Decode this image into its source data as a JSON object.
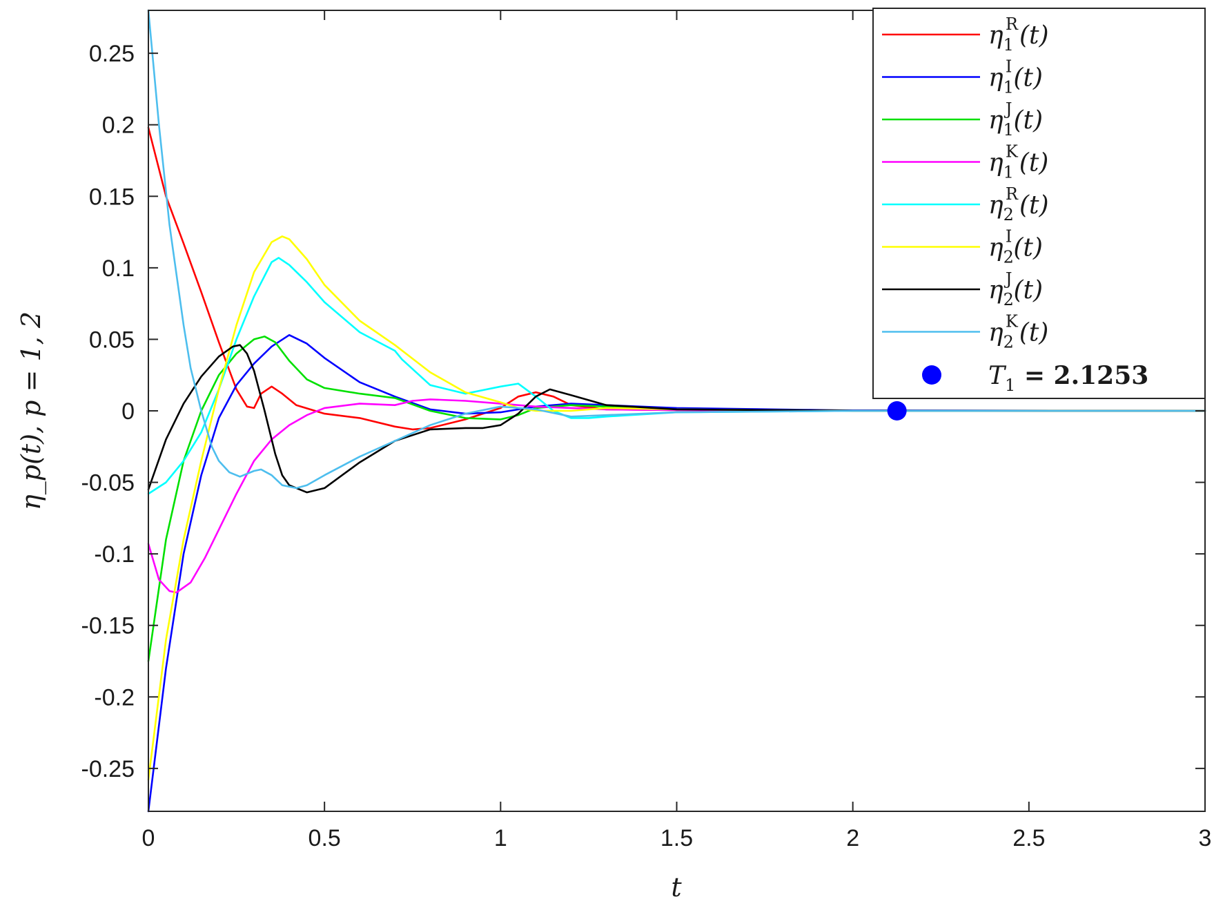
{
  "chart_data": {
    "type": "line",
    "xlabel": "t",
    "ylabel": "η_p(t),  p = 1, 2",
    "xlim": [
      0,
      3
    ],
    "ylim": [
      -0.28,
      0.28
    ],
    "xticks": [
      "0",
      "0.5",
      "1",
      "1.5",
      "2",
      "2.5",
      "3"
    ],
    "yticks": [
      "-0.25",
      "-0.2",
      "-0.15",
      "-0.1",
      "-0.05",
      "0",
      "0.05",
      "0.1",
      "0.15",
      "0.2",
      "0.25"
    ],
    "grid": false,
    "legend_position": "top-right",
    "series": [
      {
        "name": "η1^R(t)",
        "base": "η",
        "sub": "1",
        "sup": "R",
        "color": "#ff0000",
        "x": [
          0,
          0.05,
          0.1,
          0.15,
          0.2,
          0.25,
          0.28,
          0.3,
          0.32,
          0.35,
          0.38,
          0.42,
          0.5,
          0.6,
          0.7,
          0.75,
          0.8,
          0.9,
          1.0,
          1.05,
          1.1,
          1.15,
          1.2,
          1.3,
          1.5,
          2.0,
          3.0
        ],
        "y": [
          0.198,
          0.15,
          0.117,
          0.083,
          0.048,
          0.015,
          0.003,
          0.002,
          0.012,
          0.017,
          0.012,
          0.004,
          -0.002,
          -0.005,
          -0.011,
          -0.013,
          -0.012,
          -0.006,
          0.002,
          0.01,
          0.013,
          0.01,
          0.004,
          0.001,
          0.0005,
          0.0001,
          0
        ]
      },
      {
        "name": "η1^I(t)",
        "base": "η",
        "sub": "1",
        "sup": "I",
        "color": "#0000ff",
        "x": [
          0,
          0.05,
          0.1,
          0.15,
          0.2,
          0.25,
          0.3,
          0.35,
          0.4,
          0.45,
          0.5,
          0.6,
          0.7,
          0.8,
          0.9,
          1.0,
          1.1,
          1.2,
          1.3,
          1.5,
          2.0,
          3.0
        ],
        "y": [
          -0.28,
          -0.18,
          -0.1,
          -0.045,
          -0.005,
          0.018,
          0.033,
          0.045,
          0.053,
          0.047,
          0.037,
          0.02,
          0.01,
          0.001,
          -0.002,
          -0.001,
          0.003,
          0.005,
          0.004,
          0.002,
          0.0003,
          0
        ]
      },
      {
        "name": "η1^J(t)",
        "base": "η",
        "sub": "1",
        "sup": "J",
        "color": "#00e000",
        "x": [
          0,
          0.05,
          0.1,
          0.15,
          0.2,
          0.25,
          0.3,
          0.33,
          0.36,
          0.4,
          0.45,
          0.5,
          0.6,
          0.7,
          0.8,
          0.9,
          1.0,
          1.05,
          1.1,
          1.2,
          1.3,
          1.5,
          2.0,
          3.0
        ],
        "y": [
          -0.175,
          -0.09,
          -0.035,
          0.0,
          0.025,
          0.04,
          0.05,
          0.052,
          0.048,
          0.035,
          0.022,
          0.016,
          0.012,
          0.009,
          0.0,
          -0.005,
          -0.006,
          -0.003,
          0.002,
          0.004,
          0.003,
          0.001,
          0.0001,
          0
        ]
      },
      {
        "name": "η1^K(t)",
        "base": "η",
        "sub": "1",
        "sup": "K",
        "color": "#ff00ff",
        "x": [
          0,
          0.03,
          0.06,
          0.08,
          0.12,
          0.16,
          0.2,
          0.25,
          0.3,
          0.35,
          0.4,
          0.45,
          0.5,
          0.6,
          0.7,
          0.75,
          0.8,
          0.9,
          1.0,
          1.1,
          1.2,
          1.3,
          1.5,
          2.0,
          3.0
        ],
        "y": [
          -0.093,
          -0.118,
          -0.126,
          -0.127,
          -0.12,
          -0.103,
          -0.083,
          -0.058,
          -0.035,
          -0.02,
          -0.01,
          -0.003,
          0.002,
          0.005,
          0.004,
          0.007,
          0.008,
          0.007,
          0.005,
          0.003,
          0.002,
          0.001,
          0.0005,
          0.0001,
          0
        ]
      },
      {
        "name": "η2^R(t)",
        "base": "η",
        "sub": "2",
        "sup": "R",
        "color": "#00ffff",
        "x": [
          0,
          0.05,
          0.1,
          0.15,
          0.2,
          0.25,
          0.3,
          0.35,
          0.37,
          0.4,
          0.45,
          0.5,
          0.6,
          0.7,
          0.72,
          0.8,
          0.9,
          1.0,
          1.05,
          1.1,
          1.15,
          1.2,
          1.25,
          1.3,
          1.5,
          2.0,
          3.0
        ],
        "y": [
          -0.058,
          -0.05,
          -0.035,
          -0.015,
          0.015,
          0.05,
          0.08,
          0.104,
          0.107,
          0.102,
          0.09,
          0.076,
          0.055,
          0.042,
          0.036,
          0.018,
          0.012,
          0.017,
          0.019,
          0.01,
          0.0,
          -0.005,
          -0.005,
          -0.004,
          -0.001,
          0.0,
          0
        ]
      },
      {
        "name": "η2^I(t)",
        "base": "η",
        "sub": "2",
        "sup": "I",
        "color": "#ffff00",
        "x": [
          0,
          0.05,
          0.1,
          0.15,
          0.2,
          0.25,
          0.3,
          0.35,
          0.38,
          0.4,
          0.45,
          0.5,
          0.6,
          0.7,
          0.8,
          0.9,
          1.0,
          1.05,
          1.1,
          1.2,
          1.3,
          1.5,
          2.0,
          3.0
        ],
        "y": [
          -0.258,
          -0.16,
          -0.09,
          -0.035,
          0.015,
          0.06,
          0.097,
          0.118,
          0.122,
          0.12,
          0.106,
          0.088,
          0.063,
          0.046,
          0.027,
          0.013,
          0.006,
          0.002,
          0.0,
          0.0,
          0.002,
          0.001,
          0.0001,
          0
        ]
      },
      {
        "name": "η2^J(t)",
        "base": "η",
        "sub": "2",
        "sup": "J",
        "color": "#000000",
        "x": [
          0,
          0.05,
          0.1,
          0.15,
          0.2,
          0.24,
          0.26,
          0.28,
          0.3,
          0.33,
          0.36,
          0.38,
          0.4,
          0.45,
          0.5,
          0.55,
          0.6,
          0.7,
          0.75,
          0.8,
          0.9,
          0.95,
          1.0,
          1.05,
          1.1,
          1.14,
          1.2,
          1.3,
          1.5,
          2.0,
          3.0
        ],
        "y": [
          -0.055,
          -0.02,
          0.005,
          0.024,
          0.038,
          0.045,
          0.046,
          0.04,
          0.028,
          0.0,
          -0.03,
          -0.045,
          -0.052,
          -0.057,
          -0.054,
          -0.045,
          -0.036,
          -0.021,
          -0.017,
          -0.013,
          -0.012,
          -0.012,
          -0.01,
          -0.002,
          0.01,
          0.015,
          0.011,
          0.004,
          0.001,
          0.0001,
          0
        ]
      },
      {
        "name": "η2^K(t)",
        "base": "η",
        "sub": "2",
        "sup": "K",
        "color": "#4dbeee",
        "x": [
          0,
          0.03,
          0.06,
          0.1,
          0.12,
          0.15,
          0.18,
          0.2,
          0.23,
          0.26,
          0.3,
          0.32,
          0.35,
          0.38,
          0.42,
          0.45,
          0.5,
          0.6,
          0.7,
          0.8,
          0.9,
          1.0,
          1.1,
          1.2,
          1.3,
          1.5,
          2.0,
          3.0
        ],
        "y": [
          0.28,
          0.2,
          0.13,
          0.06,
          0.03,
          0.0,
          -0.025,
          -0.035,
          -0.043,
          -0.046,
          -0.042,
          -0.041,
          -0.045,
          -0.052,
          -0.054,
          -0.052,
          -0.045,
          -0.032,
          -0.021,
          -0.01,
          -0.002,
          0.003,
          0.001,
          -0.004,
          -0.003,
          -0.001,
          0.0,
          0
        ]
      }
    ],
    "marker": {
      "label": "T_1 = 2.1253",
      "base": "T",
      "sub": "1",
      "text": " = 2.1253",
      "color": "#0000ff",
      "x": 2.1253,
      "y": 0
    }
  }
}
